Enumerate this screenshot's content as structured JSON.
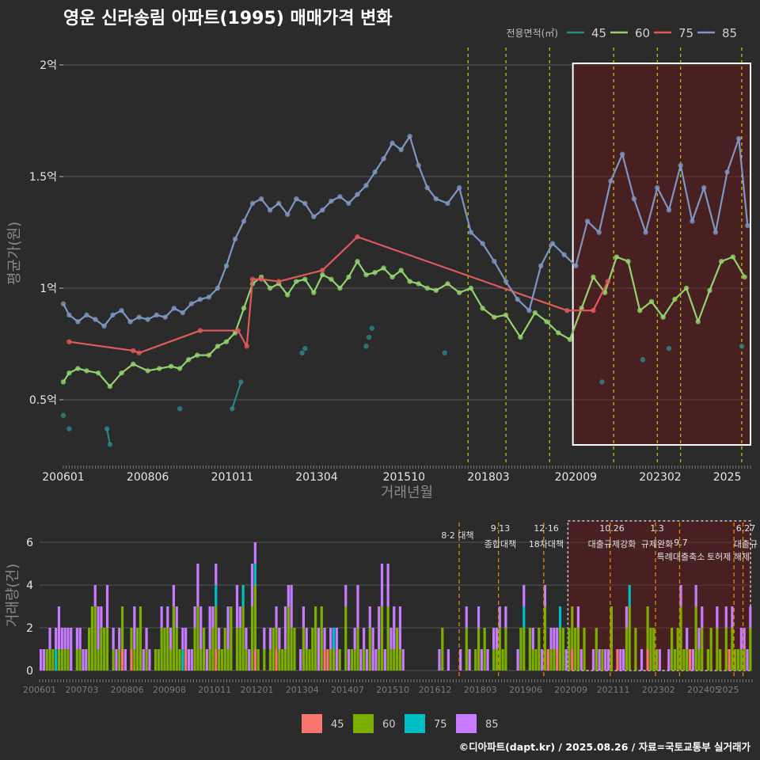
{
  "chart_data": [
    {
      "type": "line",
      "title": "영운 신라송림 아파트(1995) 매매가격 변화",
      "xlabel": "거래년월",
      "ylabel": "평균가(원)",
      "x_ticks": [
        "200601",
        "200806",
        "201011",
        "201304",
        "201510",
        "201803",
        "202009",
        "202302",
        "2025"
      ],
      "y_ticks": [
        "0.5억",
        "1억",
        "1.5억",
        "2억"
      ],
      "ylim": [
        0.2,
        2.1
      ],
      "y_unit": "억",
      "legend": {
        "title": "전용면적(㎡)",
        "position": "top-right"
      },
      "highlight": {
        "from": "2020.08",
        "to": "2025.08"
      },
      "vlines": [
        "2017.08",
        "2018.09",
        "2019.12",
        "2021.10",
        "2023.01",
        "2023.09",
        "2025.06",
        "2025.10"
      ],
      "series": [
        {
          "name": "45",
          "color": "#2a8a8a",
          "x": [
            "2006.01",
            "2006.03",
            "2007.04",
            "2007.05",
            "2009.05",
            "2010.11",
            "2011.02",
            "2012.11",
            "2012.12",
            "2014.09",
            "2014.10",
            "2014.11",
            "2016.12",
            "2021.06",
            "2022.08",
            "2023.05",
            "2025.06"
          ],
          "y": [
            0.43,
            0.37,
            0.37,
            0.3,
            0.46,
            0.46,
            0.58,
            0.71,
            0.73,
            0.74,
            0.78,
            0.82,
            0.71,
            0.58,
            0.68,
            0.73,
            0.74
          ]
        },
        {
          "name": "60",
          "color": "#92d36e",
          "x": [
            "2006.01",
            "2006.03",
            "2006.06",
            "2006.09",
            "2007.01",
            "2007.05",
            "2007.09",
            "2008.01",
            "2008.06",
            "2008.10",
            "2009.02",
            "2009.05",
            "2009.08",
            "2009.11",
            "2010.03",
            "2010.06",
            "2010.09",
            "2010.12",
            "2011.03",
            "2011.06",
            "2011.09",
            "2011.12",
            "2012.03",
            "2012.06",
            "2012.09",
            "2012.12",
            "2013.03",
            "2013.06",
            "2013.09",
            "2013.12",
            "2014.03",
            "2014.06",
            "2014.09",
            "2014.12",
            "2015.03",
            "2015.06",
            "2015.09",
            "2015.12",
            "2016.03",
            "2016.06",
            "2016.09",
            "2017.01",
            "2017.05",
            "2017.09",
            "2018.01",
            "2018.05",
            "2018.09",
            "2019.02",
            "2019.07",
            "2019.11",
            "2020.03",
            "2020.07",
            "2020.11",
            "2021.03",
            "2021.07",
            "2021.11",
            "2022.03",
            "2022.07",
            "2022.11",
            "2023.03",
            "2023.07",
            "2023.11",
            "2024.03",
            "2024.07",
            "2024.11",
            "2025.03",
            "2025.07"
          ],
          "y": [
            0.58,
            0.62,
            0.64,
            0.63,
            0.62,
            0.56,
            0.62,
            0.66,
            0.63,
            0.64,
            0.65,
            0.64,
            0.68,
            0.7,
            0.7,
            0.74,
            0.76,
            0.8,
            0.91,
            1.02,
            1.05,
            1.0,
            1.02,
            0.97,
            1.03,
            1.04,
            0.98,
            1.06,
            1.04,
            1.0,
            1.05,
            1.12,
            1.06,
            1.07,
            1.09,
            1.05,
            1.08,
            1.03,
            1.02,
            1.0,
            0.99,
            1.02,
            0.98,
            1.0,
            0.91,
            0.87,
            0.88,
            0.78,
            0.89,
            0.85,
            0.8,
            0.77,
            0.91,
            1.05,
            0.98,
            1.14,
            1.12,
            0.9,
            0.94,
            0.87,
            0.95,
            1.0,
            0.85,
            0.99,
            1.12,
            1.14,
            1.05
          ]
        },
        {
          "name": "75",
          "color": "#e05a5a",
          "x": [
            "2006.03",
            "2008.01",
            "2008.03",
            "2009.12",
            "2011.01",
            "2011.04",
            "2011.06",
            "2011.09",
            "2012.03",
            "2013.06",
            "2014.06",
            "2020.06",
            "2021.03",
            "2021.08"
          ],
          "y": [
            0.76,
            0.72,
            0.71,
            0.81,
            0.81,
            0.74,
            1.04,
            1.04,
            1.03,
            1.08,
            1.23,
            0.9,
            0.9,
            1.03
          ]
        },
        {
          "name": "85",
          "color": "#7d96c2",
          "x": [
            "2006.01",
            "2006.03",
            "2006.06",
            "2006.09",
            "2006.12",
            "2007.03",
            "2007.06",
            "2007.09",
            "2007.12",
            "2008.03",
            "2008.06",
            "2008.09",
            "2008.12",
            "2009.03",
            "2009.06",
            "2009.09",
            "2009.12",
            "2010.03",
            "2010.06",
            "2010.09",
            "2010.12",
            "2011.03",
            "2011.06",
            "2011.09",
            "2011.12",
            "2012.03",
            "2012.06",
            "2012.09",
            "2012.12",
            "2013.03",
            "2013.06",
            "2013.09",
            "2013.12",
            "2014.03",
            "2014.06",
            "2014.09",
            "2014.12",
            "2015.03",
            "2015.06",
            "2015.09",
            "2015.12",
            "2016.03",
            "2016.06",
            "2016.09",
            "2017.01",
            "2017.05",
            "2017.09",
            "2018.01",
            "2018.05",
            "2018.09",
            "2019.01",
            "2019.05",
            "2019.09",
            "2020.01",
            "2020.05",
            "2020.09",
            "2021.01",
            "2021.05",
            "2021.09",
            "2022.01",
            "2022.05",
            "2022.09",
            "2023.01",
            "2023.05",
            "2023.09",
            "2024.01",
            "2024.05",
            "2024.09",
            "2025.01",
            "2025.05",
            "2025.08"
          ],
          "y": [
            0.93,
            0.88,
            0.85,
            0.88,
            0.86,
            0.83,
            0.88,
            0.9,
            0.85,
            0.87,
            0.86,
            0.88,
            0.87,
            0.91,
            0.89,
            0.93,
            0.95,
            0.96,
            1.0,
            1.1,
            1.22,
            1.3,
            1.38,
            1.4,
            1.35,
            1.38,
            1.33,
            1.4,
            1.38,
            1.32,
            1.35,
            1.39,
            1.41,
            1.38,
            1.42,
            1.46,
            1.52,
            1.58,
            1.65,
            1.62,
            1.68,
            1.55,
            1.45,
            1.4,
            1.38,
            1.45,
            1.25,
            1.2,
            1.12,
            1.03,
            0.95,
            0.9,
            1.1,
            1.2,
            1.15,
            1.1,
            1.3,
            1.25,
            1.48,
            1.6,
            1.4,
            1.25,
            1.45,
            1.35,
            1.55,
            1.3,
            1.45,
            1.25,
            1.52,
            1.67,
            1.28
          ]
        }
      ]
    },
    {
      "type": "bar",
      "ylabel": "거래량(건)",
      "y_ticks": [
        "0",
        "2",
        "4",
        "6"
      ],
      "ylim": [
        0,
        7
      ],
      "x_ticks": [
        "200601",
        "200703",
        "200806",
        "200908",
        "201011",
        "201201",
        "201304",
        "201407",
        "201510",
        "201612",
        "201803",
        "201906",
        "202009",
        "202111",
        "202302",
        "202405",
        "2025"
      ],
      "stacked": true,
      "legend_position": "bottom",
      "series_names": [
        "45",
        "60",
        "75",
        "85"
      ],
      "series_colors": [
        "#f8766d",
        "#7cae00",
        "#00bfc4",
        "#c77cff"
      ],
      "events": [
        {
          "date": "8·2",
          "label": "대책"
        },
        {
          "date": "9·13",
          "label": "종합대책"
        },
        {
          "date": "12·16",
          "label": "18차대책"
        },
        {
          "date": "10.26",
          "label": "대출규제강화"
        },
        {
          "date": "1.3",
          "label": "규제완화"
        },
        {
          "date": "9.7",
          "label": "특례대출축소"
        },
        {
          "date": "",
          "label": "토허제 해제"
        },
        {
          "date": "6.27",
          "label": "대출규"
        }
      ]
    }
  ],
  "footer": "©디아파트(dapt.kr) / 2025.08.26 / 자료=국토교통부 실거래가"
}
